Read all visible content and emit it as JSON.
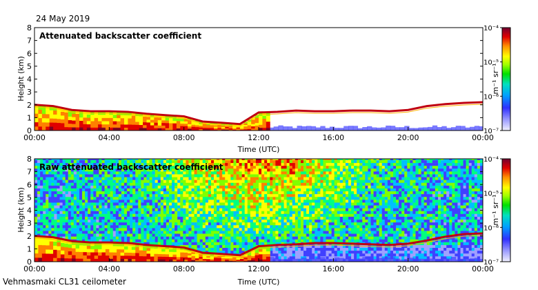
{
  "date_label": "24 May 2019",
  "footer_label": "Vehmasmaki CL31 ceilometer",
  "chart_data": [
    {
      "type": "heatmap",
      "title": "Attenuated backscatter coefficient",
      "xlabel": "Time (UTC)",
      "ylabel": "Height (km)",
      "x_ticks": [
        "00:00",
        "04:00",
        "08:00",
        "12:00",
        "16:00",
        "20:00",
        "00:00"
      ],
      "y_ticks": [
        "0",
        "1",
        "2",
        "3",
        "4",
        "5",
        "6",
        "7",
        "8"
      ],
      "ylim": [
        0,
        8
      ],
      "xlim_hours": [
        0,
        24
      ],
      "colorbar": {
        "unit": "m-1 sr-1",
        "unit_display": "m⁻¹ sr⁻¹",
        "ticks": [
          "10⁻⁴",
          "10⁻⁵",
          "10⁻⁶",
          "10⁻⁷"
        ],
        "scale": "log",
        "range": [
          1e-07,
          0.0001
        ]
      },
      "background": "white",
      "cloud_layer_km": [
        [
          0.0,
          2.0
        ],
        [
          1.0,
          1.9
        ],
        [
          2.0,
          1.6
        ],
        [
          3.0,
          1.5
        ],
        [
          4.0,
          1.5
        ],
        [
          5.0,
          1.45
        ],
        [
          6.0,
          1.3
        ],
        [
          7.0,
          1.2
        ],
        [
          8.0,
          1.1
        ],
        [
          9.0,
          0.7
        ],
        [
          10.0,
          0.6
        ],
        [
          11.0,
          0.5
        ],
        [
          12.0,
          1.4
        ],
        [
          13.0,
          1.45
        ],
        [
          14.0,
          1.55
        ],
        [
          15.0,
          1.5
        ],
        [
          16.0,
          1.5
        ],
        [
          17.0,
          1.55
        ],
        [
          18.0,
          1.55
        ],
        [
          19.0,
          1.5
        ],
        [
          20.0,
          1.6
        ],
        [
          21.0,
          1.9
        ],
        [
          22.0,
          2.05
        ],
        [
          23.0,
          2.15
        ],
        [
          24.0,
          2.2
        ]
      ]
    },
    {
      "type": "heatmap",
      "title": "Raw attenuated backscatter coefficient",
      "xlabel": "Time (UTC)",
      "ylabel": "Height (km)",
      "x_ticks": [
        "00:00",
        "04:00",
        "08:00",
        "12:00",
        "16:00",
        "20:00",
        "00:00"
      ],
      "y_ticks": [
        "0",
        "1",
        "2",
        "3",
        "4",
        "5",
        "6",
        "7",
        "8"
      ],
      "ylim": [
        0,
        8
      ],
      "xlim_hours": [
        0,
        24
      ],
      "colorbar": {
        "unit": "m-1 sr-1",
        "unit_display": "m⁻¹ sr⁻¹",
        "ticks": [
          "10⁻⁴",
          "10⁻⁵",
          "10⁻⁶",
          "10⁻⁷"
        ],
        "scale": "log",
        "range": [
          1e-07,
          0.0001
        ]
      },
      "background": "noise",
      "cloud_layer_km": [
        [
          0.0,
          2.0
        ],
        [
          1.0,
          1.9
        ],
        [
          2.0,
          1.6
        ],
        [
          3.0,
          1.5
        ],
        [
          4.0,
          1.5
        ],
        [
          5.0,
          1.45
        ],
        [
          6.0,
          1.3
        ],
        [
          7.0,
          1.2
        ],
        [
          8.0,
          1.1
        ],
        [
          9.0,
          0.7
        ],
        [
          10.0,
          0.6
        ],
        [
          11.0,
          0.5
        ],
        [
          12.0,
          1.2
        ],
        [
          13.0,
          1.3
        ],
        [
          14.0,
          1.35
        ],
        [
          15.0,
          1.45
        ],
        [
          16.0,
          1.45
        ],
        [
          17.0,
          1.4
        ],
        [
          18.0,
          1.35
        ],
        [
          19.0,
          1.3
        ],
        [
          20.0,
          1.4
        ],
        [
          21.0,
          1.65
        ],
        [
          22.0,
          1.95
        ],
        [
          23.0,
          2.15
        ],
        [
          24.0,
          2.2
        ]
      ]
    }
  ],
  "colors": {
    "scale": [
      "#e0e0ff",
      "#a0a0ff",
      "#4040ff",
      "#00c0ff",
      "#00ff80",
      "#80ff00",
      "#ffff00",
      "#ff8000",
      "#e00000",
      "#800020"
    ]
  }
}
